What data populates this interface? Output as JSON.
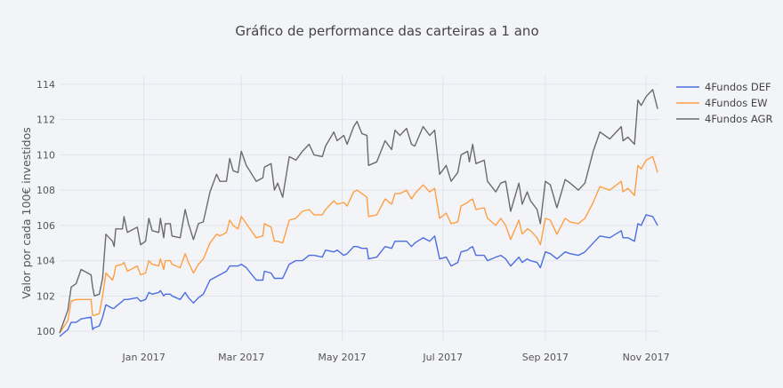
{
  "chart_data": {
    "type": "line",
    "title": "Gráfico de performance das carteiras a 1 ano",
    "xlabel": "",
    "ylabel": "Valor por cada 100€ investidos",
    "xlim": [
      "2016-11-11",
      "2017-11-09"
    ],
    "ylim": [
      99.5,
      114.5
    ],
    "x_ticks": [
      {
        "date": "2017-01-01",
        "label": "Jan 2017"
      },
      {
        "date": "2017-03-01",
        "label": "Mar 2017"
      },
      {
        "date": "2017-05-01",
        "label": "May 2017"
      },
      {
        "date": "2017-07-01",
        "label": "Jul 2017"
      },
      {
        "date": "2017-09-01",
        "label": "Sep 2017"
      },
      {
        "date": "2017-11-01",
        "label": "Nov 2017"
      }
    ],
    "y_ticks": [
      100,
      102,
      104,
      106,
      108,
      110,
      112,
      114
    ],
    "grid": true,
    "legend_position": "top-right",
    "background": "#f3f4f8",
    "x": [
      "2016-11-11",
      "2016-11-16",
      "2016-11-18",
      "2016-11-21",
      "2016-11-24",
      "2016-11-30",
      "2016-12-01",
      "2016-12-02",
      "2016-12-05",
      "2016-12-07",
      "2016-12-09",
      "2016-12-13",
      "2016-12-14",
      "2016-12-15",
      "2016-12-19",
      "2016-12-20",
      "2016-12-22",
      "2016-12-28",
      "2016-12-30",
      "2017-01-02",
      "2017-01-04",
      "2017-01-06",
      "2017-01-10",
      "2017-01-11",
      "2017-01-13",
      "2017-01-14",
      "2017-01-17",
      "2017-01-18",
      "2017-01-23",
      "2017-01-26",
      "2017-01-28",
      "2017-01-31",
      "2017-02-03",
      "2017-02-06",
      "2017-02-10",
      "2017-02-14",
      "2017-02-16",
      "2017-02-20",
      "2017-02-22",
      "2017-02-24",
      "2017-02-27",
      "2017-03-01",
      "2017-03-04",
      "2017-03-10",
      "2017-03-14",
      "2017-03-15",
      "2017-03-19",
      "2017-03-21",
      "2017-03-23",
      "2017-03-26",
      "2017-03-30",
      "2017-04-03",
      "2017-04-07",
      "2017-04-11",
      "2017-04-14",
      "2017-04-19",
      "2017-04-21",
      "2017-04-26",
      "2017-04-28",
      "2017-05-02",
      "2017-05-04",
      "2017-05-08",
      "2017-05-10",
      "2017-05-13",
      "2017-05-16",
      "2017-05-17",
      "2017-05-22",
      "2017-05-27",
      "2017-05-31",
      "2017-06-02",
      "2017-06-05",
      "2017-06-09",
      "2017-06-12",
      "2017-06-14",
      "2017-06-19",
      "2017-06-23",
      "2017-06-26",
      "2017-06-29",
      "2017-07-03",
      "2017-07-06",
      "2017-07-10",
      "2017-07-12",
      "2017-07-16",
      "2017-07-17",
      "2017-07-19",
      "2017-07-21",
      "2017-07-26",
      "2017-07-28",
      "2017-08-02",
      "2017-08-05",
      "2017-08-08",
      "2017-08-11",
      "2017-08-16",
      "2017-08-18",
      "2017-08-21",
      "2017-08-23",
      "2017-08-27",
      "2017-08-29",
      "2017-09-01",
      "2017-09-04",
      "2017-09-08",
      "2017-09-13",
      "2017-09-16",
      "2017-09-21",
      "2017-09-25",
      "2017-09-30",
      "2017-10-04",
      "2017-10-10",
      "2017-10-17",
      "2017-10-18",
      "2017-10-21",
      "2017-10-25",
      "2017-10-27",
      "2017-10-29",
      "2017-11-01",
      "2017-11-05",
      "2017-11-08"
    ],
    "series": [
      {
        "name": "4Fundos DEF",
        "color": "#4a6ee0",
        "values": [
          99.7,
          100.1,
          100.5,
          100.5,
          100.7,
          100.8,
          100.1,
          100.2,
          100.3,
          100.8,
          101.5,
          101.3,
          101.3,
          101.4,
          101.7,
          101.8,
          101.8,
          101.9,
          101.7,
          101.8,
          102.2,
          102.1,
          102.2,
          102.3,
          102.0,
          102.1,
          102.1,
          102.0,
          101.8,
          102.2,
          101.9,
          101.6,
          101.9,
          102.1,
          102.9,
          103.1,
          103.2,
          103.4,
          103.7,
          103.7,
          103.7,
          103.8,
          103.6,
          102.9,
          102.9,
          103.4,
          103.3,
          103.0,
          103.0,
          103.0,
          103.8,
          104.0,
          104.0,
          104.3,
          104.3,
          104.2,
          104.6,
          104.5,
          104.6,
          104.3,
          104.4,
          104.8,
          104.8,
          104.7,
          104.7,
          104.1,
          104.2,
          104.8,
          104.7,
          105.1,
          105.1,
          105.1,
          104.8,
          105.0,
          105.3,
          105.1,
          105.4,
          104.1,
          104.2,
          103.7,
          103.9,
          104.5,
          104.6,
          104.7,
          104.8,
          104.3,
          104.3,
          104.0,
          104.2,
          104.3,
          104.1,
          103.7,
          104.2,
          103.9,
          104.1,
          104.0,
          103.9,
          103.6,
          104.5,
          104.4,
          104.1,
          104.5,
          104.4,
          104.3,
          104.5,
          105.0,
          105.4,
          105.3,
          105.7,
          105.3,
          105.3,
          105.1,
          106.1,
          106.0,
          106.6,
          106.5,
          106.0
        ]
      },
      {
        "name": "4Fundos EW",
        "color": "#ff9f43",
        "values": [
          99.9,
          100.6,
          101.7,
          101.8,
          101.8,
          101.8,
          100.9,
          100.9,
          101.0,
          102.0,
          103.3,
          102.9,
          103.2,
          103.7,
          103.8,
          103.9,
          103.4,
          103.7,
          103.2,
          103.3,
          104.0,
          103.8,
          103.7,
          104.1,
          103.5,
          104.0,
          104.0,
          103.8,
          103.6,
          104.4,
          103.9,
          103.3,
          103.8,
          104.1,
          105.0,
          105.5,
          105.4,
          105.6,
          106.3,
          106.0,
          105.8,
          106.5,
          106.1,
          105.3,
          105.4,
          106.1,
          105.9,
          105.1,
          105.1,
          105.0,
          106.3,
          106.4,
          106.8,
          106.9,
          106.6,
          106.6,
          106.9,
          107.4,
          107.2,
          107.3,
          107.1,
          107.9,
          108.0,
          107.8,
          107.6,
          106.5,
          106.6,
          107.5,
          107.2,
          107.8,
          107.8,
          108.0,
          107.5,
          107.8,
          108.3,
          107.9,
          108.1,
          106.4,
          106.7,
          106.1,
          106.2,
          107.1,
          107.3,
          107.4,
          107.5,
          106.9,
          107.0,
          106.4,
          106.0,
          106.4,
          106.0,
          105.2,
          106.3,
          105.5,
          105.8,
          105.7,
          105.3,
          104.9,
          106.4,
          106.3,
          105.5,
          106.4,
          106.2,
          106.1,
          106.4,
          107.3,
          108.2,
          108.0,
          108.5,
          107.9,
          108.1,
          107.7,
          109.4,
          109.2,
          109.7,
          109.9,
          109.0
        ]
      },
      {
        "name": "4Fundos AGR",
        "color": "#6b6b6b",
        "values": [
          99.9,
          101.2,
          102.5,
          102.7,
          103.5,
          103.2,
          102.5,
          102.0,
          102.1,
          103.0,
          105.5,
          105.1,
          104.8,
          105.8,
          105.8,
          106.5,
          105.6,
          105.9,
          104.9,
          105.1,
          106.4,
          105.7,
          105.6,
          106.4,
          105.3,
          106.1,
          106.1,
          105.4,
          105.3,
          106.9,
          106.1,
          105.2,
          106.1,
          106.2,
          107.9,
          108.9,
          108.5,
          108.5,
          109.8,
          109.1,
          109.0,
          110.2,
          109.4,
          108.5,
          108.7,
          109.3,
          109.5,
          108.0,
          108.4,
          107.6,
          109.9,
          109.7,
          110.2,
          110.6,
          110.0,
          109.9,
          110.5,
          111.3,
          110.8,
          111.1,
          110.6,
          111.6,
          111.9,
          111.2,
          111.1,
          109.4,
          109.6,
          110.8,
          110.3,
          111.4,
          111.1,
          111.5,
          110.6,
          110.5,
          111.6,
          111.1,
          111.4,
          108.9,
          109.4,
          108.5,
          109.0,
          110.0,
          110.2,
          109.6,
          110.6,
          109.5,
          109.7,
          108.5,
          107.9,
          108.4,
          108.5,
          106.8,
          108.4,
          107.2,
          107.9,
          107.4,
          106.9,
          106.1,
          108.5,
          108.3,
          107.0,
          108.6,
          108.4,
          108.0,
          108.4,
          110.2,
          111.3,
          110.9,
          111.6,
          110.8,
          111.0,
          110.6,
          113.1,
          112.8,
          113.3,
          113.7,
          112.6
        ]
      }
    ]
  }
}
